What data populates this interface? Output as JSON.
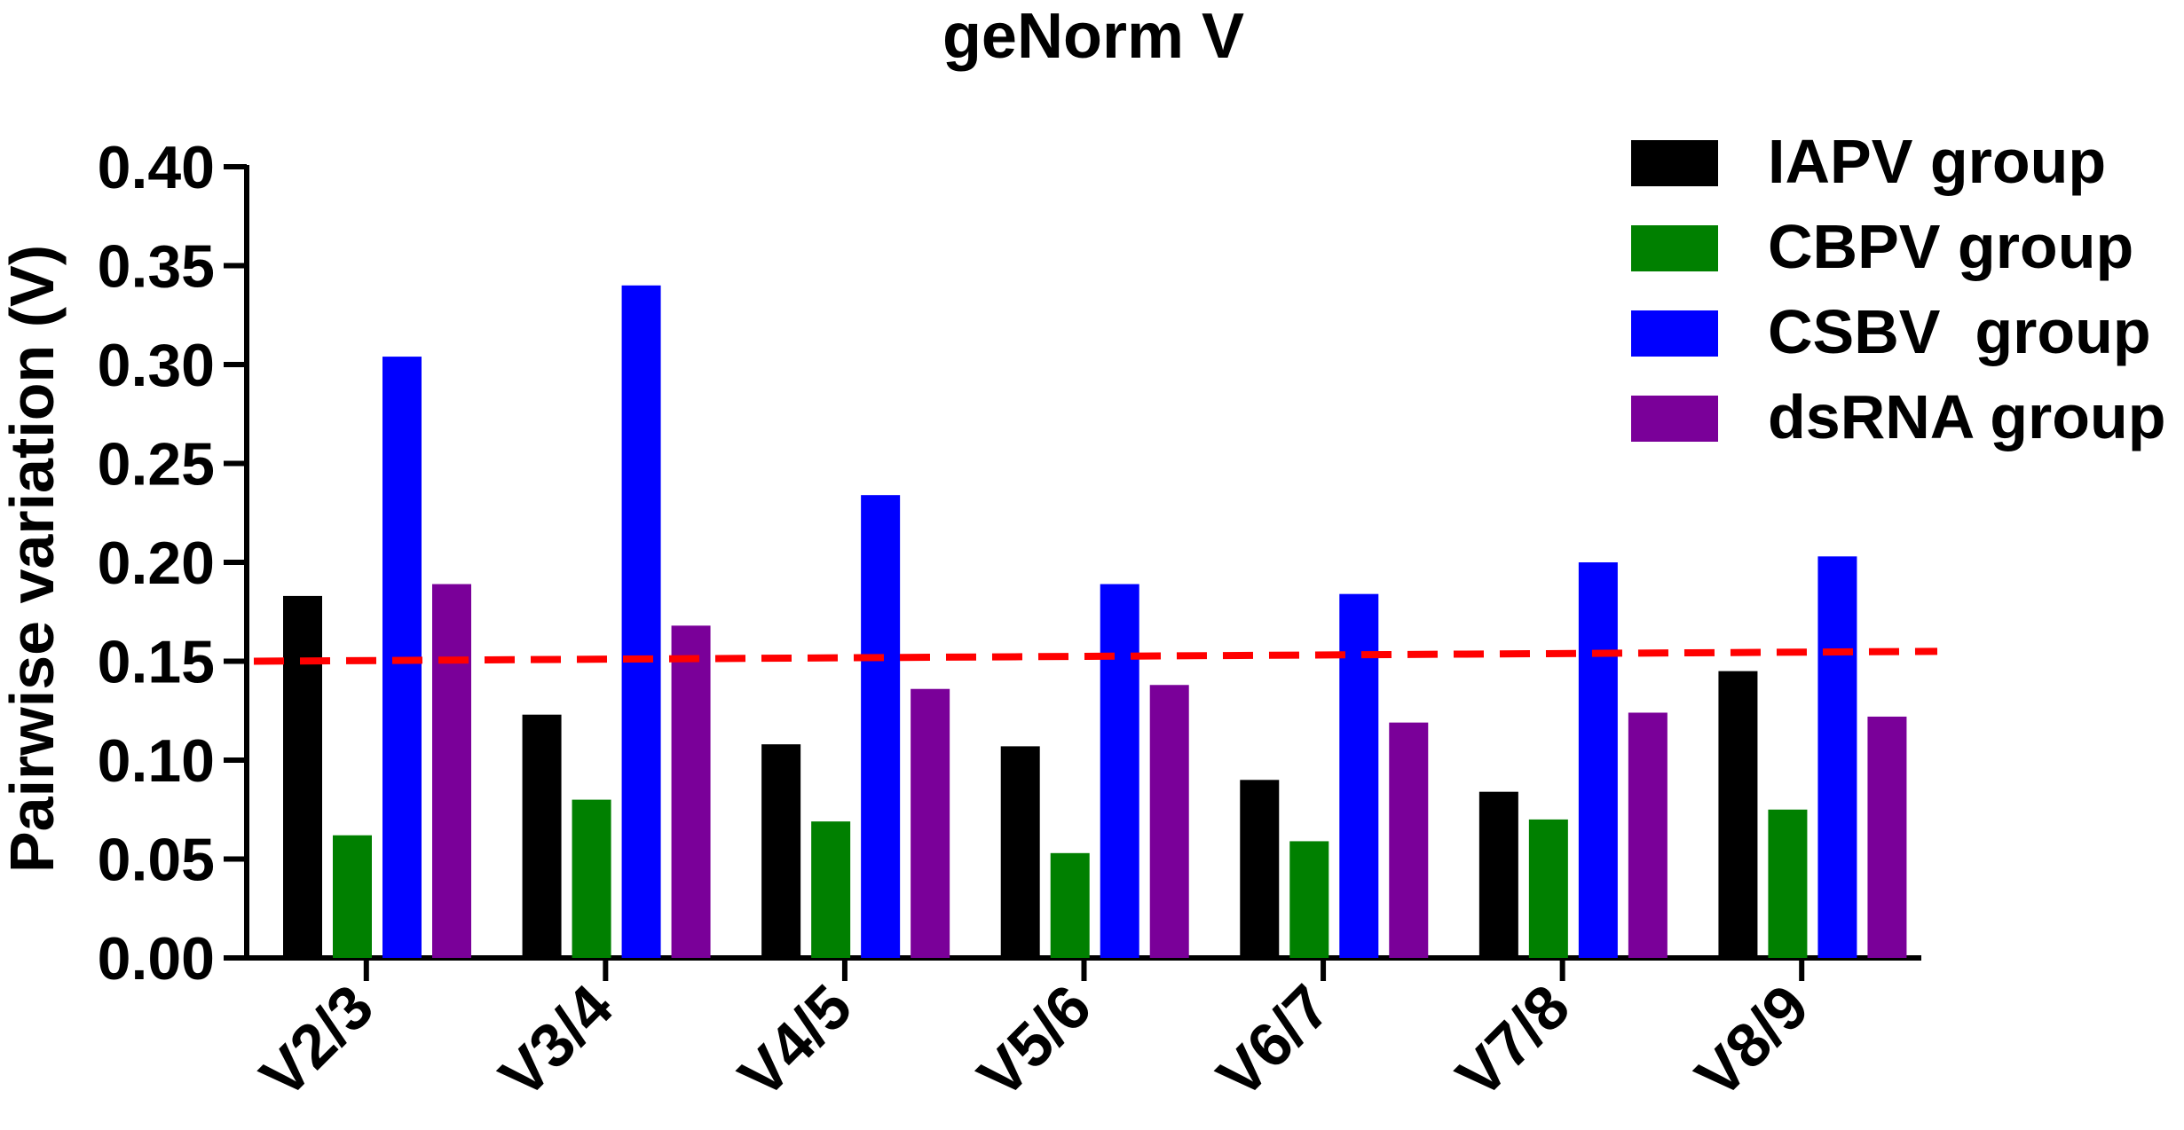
{
  "chart_data": {
    "type": "bar",
    "title": "geNorm V",
    "xlabel": "",
    "ylabel": "Pairwise variation (V)",
    "categories": [
      "V2/3",
      "V3/4",
      "V4/5",
      "V5/6",
      "V6/7",
      "V7/8",
      "V8/9"
    ],
    "ylim": [
      0,
      0.4
    ],
    "yticks": [
      "0.00",
      "0.05",
      "0.10",
      "0.15",
      "0.20",
      "0.25",
      "0.30",
      "0.35",
      "0.40"
    ],
    "grid": false,
    "legend_position": "top-right",
    "series": [
      {
        "name": "IAPV group",
        "color": "#000000",
        "values": [
          0.183,
          0.123,
          0.108,
          0.107,
          0.09,
          0.084,
          0.145
        ]
      },
      {
        "name": "CBPV group",
        "color": "#008000",
        "values": [
          0.062,
          0.08,
          0.069,
          0.053,
          0.059,
          0.07,
          0.075
        ]
      },
      {
        "name": "CSBV  group",
        "color": "#0000ff",
        "values": [
          0.304,
          0.34,
          0.234,
          0.189,
          0.184,
          0.2,
          0.203
        ]
      },
      {
        "name": "dsRNA group",
        "color": "#7a0099",
        "values": [
          0.189,
          0.168,
          0.136,
          0.138,
          0.119,
          0.124,
          0.122
        ]
      }
    ],
    "threshold": {
      "color": "#ff0000",
      "style": "dashed",
      "start_value": 0.15,
      "end_value": 0.155
    }
  }
}
